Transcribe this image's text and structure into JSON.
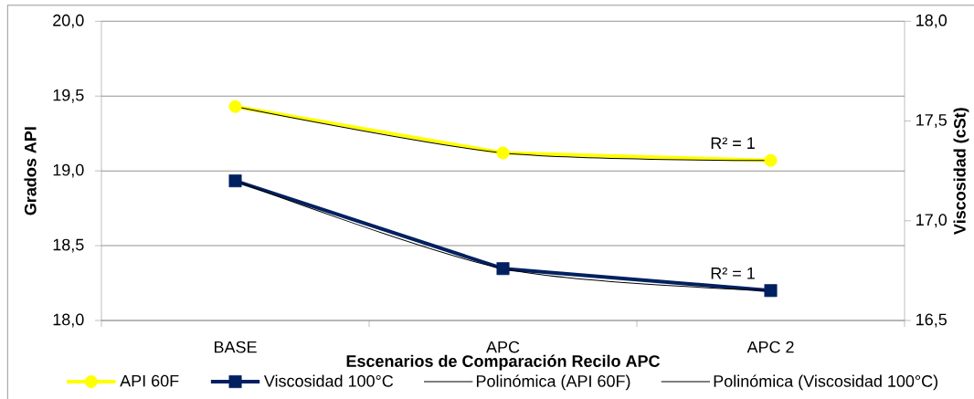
{
  "chart_data": {
    "type": "line",
    "xlabel": "Escenarios de Comparación Recilo APC",
    "ylabel": "Grados API",
    "y2label": "Viscosidad (cSt)",
    "categories": [
      "BASE",
      "APC",
      "APC 2"
    ],
    "series": [
      {
        "name": "API 60F",
        "color": "#ffff00",
        "values": [
          19.43,
          19.12,
          19.07
        ],
        "marker": "circle"
      },
      {
        "name": "Viscosidad 100°C",
        "color": "#002060",
        "values": [
          17.2,
          16.76,
          16.65
        ],
        "marker": "square",
        "axis": "y2"
      },
      {
        "name": "Polinómica (API 60F)",
        "type": "line",
        "color": "#000000",
        "values": [
          19.43,
          19.12,
          19.07
        ],
        "marker": "none"
      },
      {
        "name": "Polinómica (Viscosidad 100°C)",
        "type": "line",
        "color": "#000000",
        "values": [
          17.2,
          16.76,
          16.65
        ],
        "marker": "none",
        "axis": "y2"
      }
    ],
    "ylim": [
      18,
      20
    ],
    "yticks": [
      {
        "value": 18,
        "label": "18,0"
      },
      {
        "value": 18.5,
        "label": "18,5"
      },
      {
        "value": 19,
        "label": "19,0"
      },
      {
        "value": 19.5,
        "label": "19,5"
      },
      {
        "value": 20,
        "label": "20,0"
      }
    ],
    "y2lim": [
      16.5,
      18
    ],
    "y2ticks": [
      {
        "value": 16.5,
        "label": "16,5"
      },
      {
        "value": 17,
        "label": "17,0"
      },
      {
        "value": 17.5,
        "label": "17,5"
      },
      {
        "value": 18,
        "label": "18,0"
      }
    ],
    "grid": "y",
    "legend": "bottom",
    "annotations": [
      "R² = 1",
      "R² = 1"
    ]
  }
}
